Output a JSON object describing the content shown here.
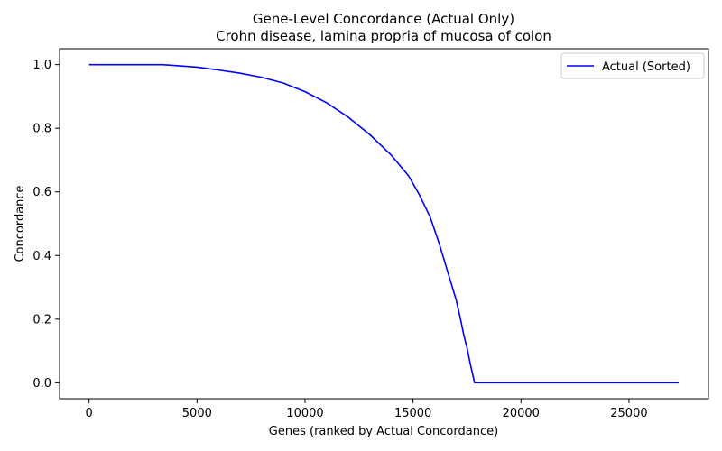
{
  "chart_data": {
    "type": "line",
    "title": "Gene-Level Concordance (Actual Only)",
    "subtitle": "Crohn disease, lamina propria of mucosa of colon",
    "xlabel": "Genes (ranked by Actual Concordance)",
    "ylabel": "Concordance",
    "xlim": [
      -1366,
      28680
    ],
    "ylim": [
      -0.05,
      1.05
    ],
    "xticks": [
      0,
      5000,
      10000,
      15000,
      20000,
      25000
    ],
    "yticks": [
      0.0,
      0.2,
      0.4,
      0.6,
      0.8,
      1.0
    ],
    "xtick_labels": [
      "0",
      "5000",
      "10000",
      "15000",
      "20000",
      "25000"
    ],
    "ytick_labels": [
      "0.0",
      "0.2",
      "0.4",
      "0.6",
      "0.8",
      "1.0"
    ],
    "grid": false,
    "legend_position": "top-right",
    "series": [
      {
        "name": "Actual (Sorted)",
        "color": "#0000ff",
        "x": [
          0,
          1000,
          2000,
          3000,
          3400,
          4000,
          5000,
          6000,
          7000,
          8000,
          9000,
          10000,
          11000,
          12000,
          13000,
          14000,
          14800,
          15300,
          15800,
          16200,
          16600,
          17000,
          17200,
          17350,
          17500,
          17650,
          17800,
          17850,
          18500,
          20000,
          22000,
          24000,
          26000,
          27300
        ],
        "y": [
          1.0,
          1.0,
          1.0,
          1.0,
          1.0,
          0.997,
          0.992,
          0.983,
          0.973,
          0.96,
          0.942,
          0.915,
          0.88,
          0.835,
          0.78,
          0.715,
          0.65,
          0.59,
          0.52,
          0.44,
          0.35,
          0.26,
          0.2,
          0.15,
          0.11,
          0.06,
          0.015,
          0.0,
          0.0,
          0.0,
          0.0,
          0.0,
          0.0,
          0.0
        ]
      }
    ]
  }
}
